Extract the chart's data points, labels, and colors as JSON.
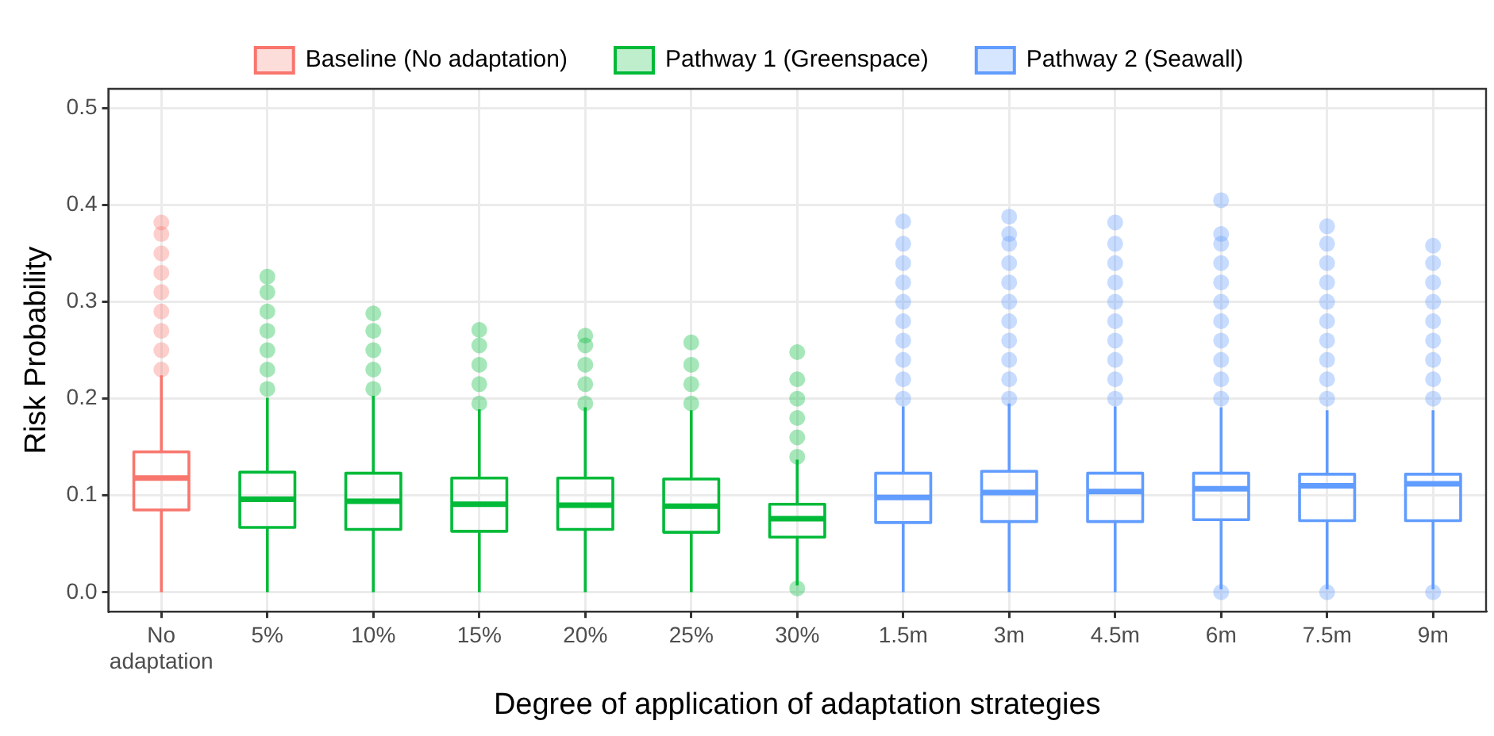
{
  "chart_data": {
    "type": "box",
    "xlabel": "Degree of application of adaptation strategies",
    "ylabel": "Risk Probability",
    "categories": [
      "No adaptation",
      "5%",
      "10%",
      "15%",
      "20%",
      "25%",
      "30%",
      "1.5m",
      "3m",
      "4.5m",
      "6m",
      "7.5m",
      "9m"
    ],
    "ylim": [
      -0.02,
      0.52
    ],
    "yticks": [
      {
        "value": 0,
        "label": "0.0"
      },
      {
        "value": 0.1,
        "label": "0.1"
      },
      {
        "value": 0.2,
        "label": "0.2"
      },
      {
        "value": 0.3,
        "label": "0.3"
      },
      {
        "value": 0.4,
        "label": "0.4"
      },
      {
        "value": 0.5,
        "label": "0.5"
      }
    ],
    "grid": true,
    "legend": "top",
    "marker": "circle",
    "series": [
      {
        "name": "Baseline (No adaptation)",
        "color": "#f8766d",
        "boxes": [
          {
            "low": 0,
            "q1": 0.085,
            "median": 0.118,
            "q3": 0.145,
            "high": 0.224,
            "outliers": [
              0.23,
              0.25,
              0.27,
              0.29,
              0.31,
              0.33,
              0.35,
              0.37,
              0.382
            ]
          },
          null,
          null,
          null,
          null,
          null,
          null,
          null,
          null,
          null,
          null,
          null,
          null
        ]
      },
      {
        "name": "Pathway 1 (Greenspace)",
        "color": "#00ba38",
        "boxes": [
          null,
          {
            "low": 0,
            "q1": 0.067,
            "median": 0.096,
            "q3": 0.124,
            "high": 0.201,
            "outliers": [
              0.21,
              0.23,
              0.25,
              0.27,
              0.29,
              0.31,
              0.326
            ]
          },
          {
            "low": 0,
            "q1": 0.065,
            "median": 0.094,
            "q3": 0.123,
            "high": 0.203,
            "outliers": [
              0.21,
              0.23,
              0.25,
              0.27,
              0.288
            ]
          },
          {
            "low": 0,
            "q1": 0.063,
            "median": 0.091,
            "q3": 0.118,
            "high": 0.189,
            "outliers": [
              0.195,
              0.215,
              0.235,
              0.255,
              0.271
            ]
          },
          {
            "low": 0,
            "q1": 0.065,
            "median": 0.09,
            "q3": 0.118,
            "high": 0.191,
            "outliers": [
              0.195,
              0.215,
              0.235,
              0.255,
              0.265
            ]
          },
          {
            "low": 0,
            "q1": 0.062,
            "median": 0.089,
            "q3": 0.117,
            "high": 0.188,
            "outliers": [
              0.195,
              0.215,
              0.235,
              0.258
            ]
          },
          {
            "low": 0.007,
            "q1": 0.057,
            "median": 0.076,
            "q3": 0.091,
            "high": 0.137,
            "outliers": [
              0.004,
              0.14,
              0.16,
              0.18,
              0.2,
              0.22,
              0.248
            ]
          },
          null,
          null,
          null,
          null,
          null,
          null
        ]
      },
      {
        "name": "Pathway 2 (Seawall)",
        "color": "#619cff",
        "boxes": [
          null,
          null,
          null,
          null,
          null,
          null,
          null,
          {
            "low": 0,
            "q1": 0.072,
            "median": 0.098,
            "q3": 0.123,
            "high": 0.192,
            "outliers": [
              0.2,
              0.22,
              0.24,
              0.26,
              0.28,
              0.3,
              0.32,
              0.34,
              0.36,
              0.383
            ]
          },
          {
            "low": 0,
            "q1": 0.073,
            "median": 0.103,
            "q3": 0.125,
            "high": 0.195,
            "outliers": [
              0.2,
              0.22,
              0.24,
              0.26,
              0.28,
              0.3,
              0.32,
              0.34,
              0.36,
              0.37,
              0.388
            ]
          },
          {
            "low": 0,
            "q1": 0.073,
            "median": 0.104,
            "q3": 0.123,
            "high": 0.192,
            "outliers": [
              0.2,
              0.22,
              0.24,
              0.26,
              0.28,
              0.3,
              0.32,
              0.34,
              0.36,
              0.382
            ]
          },
          {
            "low": 0.003,
            "q1": 0.075,
            "median": 0.107,
            "q3": 0.123,
            "high": 0.191,
            "outliers": [
              0,
              0.2,
              0.22,
              0.24,
              0.26,
              0.28,
              0.3,
              0.32,
              0.34,
              0.36,
              0.37,
              0.405
            ]
          },
          {
            "low": 0.003,
            "q1": 0.074,
            "median": 0.11,
            "q3": 0.122,
            "high": 0.188,
            "outliers": [
              0,
              0.2,
              0.22,
              0.24,
              0.26,
              0.28,
              0.3,
              0.32,
              0.34,
              0.36,
              0.378
            ]
          },
          {
            "low": 0.003,
            "q1": 0.074,
            "median": 0.112,
            "q3": 0.122,
            "high": 0.188,
            "outliers": [
              0,
              0.2,
              0.22,
              0.24,
              0.26,
              0.28,
              0.3,
              0.32,
              0.34,
              0.358
            ]
          }
        ]
      }
    ]
  }
}
